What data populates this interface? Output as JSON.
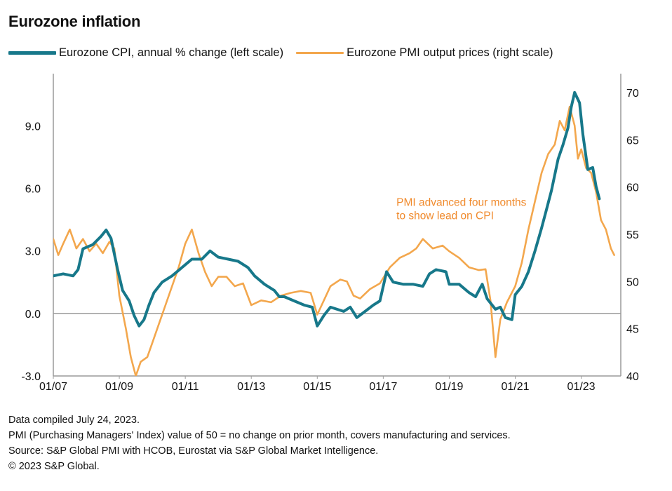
{
  "title": "Eurozone inflation",
  "legend": {
    "cpi": "Eurozone CPI, annual % change (left scale)",
    "pmi": "Eurozone PMI output prices (right scale)"
  },
  "colors": {
    "cpi": "#17788a",
    "pmi": "#f3a74d",
    "axis": "#9a9a9a",
    "annotation": "#f08a2c"
  },
  "footer": {
    "line1": "Data compiled July 24, 2023.",
    "line2": "PMI (Purchasing Managers' Index) value of 50 = no change on prior month, covers manufacturing and services.",
    "line3": "Source: S&P Global PMI with HCOB, Eurostat via S&P Global Market Intelligence.",
    "line4": "© 2023 S&P Global."
  },
  "chart_data": {
    "type": "line",
    "title": "Eurozone inflation",
    "x_labels": [
      "01/07",
      "01/09",
      "01/11",
      "01/13",
      "01/15",
      "01/17",
      "01/19",
      "01/21",
      "01/23"
    ],
    "x_label_years": [
      2007,
      2009,
      2011,
      2013,
      2015,
      2017,
      2019,
      2021,
      2023
    ],
    "x_range": [
      2007.0,
      2024.2
    ],
    "left_axis": {
      "ylim": [
        -3.0,
        11.5
      ],
      "ticks": [
        -3.0,
        0.0,
        3.0,
        6.0,
        9.0
      ],
      "tick_labels": [
        "-3.0",
        "0.0",
        "3.0",
        "6.0",
        "9.0"
      ]
    },
    "right_axis": {
      "ylim": [
        40,
        72
      ],
      "ticks": [
        40,
        45,
        50,
        55,
        60,
        65,
        70
      ],
      "tick_labels": [
        "40",
        "45",
        "50",
        "55",
        "60",
        "65",
        "70"
      ]
    },
    "annotation": {
      "lines": [
        "PMI advanced four months",
        "to show lead on CPI"
      ],
      "at": [
        2017.4,
        58.0
      ]
    },
    "series": [
      {
        "name": "Eurozone CPI, annual % change (left scale)",
        "axis": "left",
        "points": [
          [
            2007.0,
            1.8
          ],
          [
            2007.3,
            1.9
          ],
          [
            2007.6,
            1.8
          ],
          [
            2007.75,
            2.1
          ],
          [
            2007.9,
            3.1
          ],
          [
            2008.2,
            3.3
          ],
          [
            2008.45,
            3.7
          ],
          [
            2008.6,
            4.0
          ],
          [
            2008.75,
            3.6
          ],
          [
            2008.95,
            2.1
          ],
          [
            2009.1,
            1.1
          ],
          [
            2009.3,
            0.6
          ],
          [
            2009.45,
            -0.1
          ],
          [
            2009.6,
            -0.6
          ],
          [
            2009.75,
            -0.3
          ],
          [
            2009.9,
            0.4
          ],
          [
            2010.05,
            1.0
          ],
          [
            2010.3,
            1.5
          ],
          [
            2010.6,
            1.8
          ],
          [
            2010.9,
            2.2
          ],
          [
            2011.2,
            2.6
          ],
          [
            2011.5,
            2.6
          ],
          [
            2011.75,
            3.0
          ],
          [
            2012.0,
            2.7
          ],
          [
            2012.3,
            2.6
          ],
          [
            2012.6,
            2.5
          ],
          [
            2012.9,
            2.2
          ],
          [
            2013.1,
            1.8
          ],
          [
            2013.4,
            1.4
          ],
          [
            2013.7,
            1.1
          ],
          [
            2013.85,
            0.8
          ],
          [
            2014.0,
            0.8
          ],
          [
            2014.3,
            0.6
          ],
          [
            2014.6,
            0.4
          ],
          [
            2014.85,
            0.3
          ],
          [
            2015.0,
            -0.6
          ],
          [
            2015.2,
            -0.1
          ],
          [
            2015.4,
            0.3
          ],
          [
            2015.6,
            0.2
          ],
          [
            2015.8,
            0.1
          ],
          [
            2016.0,
            0.3
          ],
          [
            2016.2,
            -0.2
          ],
          [
            2016.45,
            0.1
          ],
          [
            2016.7,
            0.4
          ],
          [
            2016.9,
            0.6
          ],
          [
            2017.1,
            2.0
          ],
          [
            2017.3,
            1.5
          ],
          [
            2017.6,
            1.4
          ],
          [
            2017.9,
            1.4
          ],
          [
            2018.2,
            1.3
          ],
          [
            2018.4,
            1.9
          ],
          [
            2018.6,
            2.1
          ],
          [
            2018.9,
            2.0
          ],
          [
            2019.0,
            1.4
          ],
          [
            2019.3,
            1.4
          ],
          [
            2019.6,
            1.0
          ],
          [
            2019.8,
            0.8
          ],
          [
            2020.0,
            1.4
          ],
          [
            2020.15,
            0.7
          ],
          [
            2020.4,
            0.2
          ],
          [
            2020.55,
            0.3
          ],
          [
            2020.7,
            -0.2
          ],
          [
            2020.9,
            -0.3
          ],
          [
            2021.0,
            0.9
          ],
          [
            2021.2,
            1.3
          ],
          [
            2021.4,
            2.0
          ],
          [
            2021.6,
            3.0
          ],
          [
            2021.8,
            4.1
          ],
          [
            2021.95,
            5.0
          ],
          [
            2022.1,
            5.9
          ],
          [
            2022.3,
            7.4
          ],
          [
            2022.45,
            8.1
          ],
          [
            2022.6,
            8.9
          ],
          [
            2022.7,
            9.9
          ],
          [
            2022.8,
            10.6
          ],
          [
            2022.95,
            10.1
          ],
          [
            2023.05,
            8.6
          ],
          [
            2023.2,
            6.9
          ],
          [
            2023.35,
            7.0
          ],
          [
            2023.45,
            6.1
          ],
          [
            2023.55,
            5.5
          ]
        ]
      },
      {
        "name": "Eurozone PMI output prices (right scale)",
        "axis": "right",
        "points": [
          [
            2007.0,
            54.5
          ],
          [
            2007.15,
            52.8
          ],
          [
            2007.3,
            54.0
          ],
          [
            2007.5,
            55.5
          ],
          [
            2007.7,
            53.5
          ],
          [
            2007.9,
            54.5
          ],
          [
            2008.1,
            53.2
          ],
          [
            2008.3,
            54.0
          ],
          [
            2008.5,
            53.0
          ],
          [
            2008.7,
            54.2
          ],
          [
            2008.85,
            53.5
          ],
          [
            2009.0,
            48.5
          ],
          [
            2009.2,
            45.0
          ],
          [
            2009.35,
            42.0
          ],
          [
            2009.5,
            40.0
          ],
          [
            2009.65,
            41.5
          ],
          [
            2009.85,
            42.0
          ],
          [
            2010.0,
            43.5
          ],
          [
            2010.2,
            45.5
          ],
          [
            2010.4,
            47.5
          ],
          [
            2010.6,
            49.5
          ],
          [
            2010.8,
            51.5
          ],
          [
            2011.0,
            54.0
          ],
          [
            2011.2,
            55.5
          ],
          [
            2011.4,
            53.0
          ],
          [
            2011.6,
            51.0
          ],
          [
            2011.8,
            49.5
          ],
          [
            2012.0,
            50.5
          ],
          [
            2012.25,
            50.5
          ],
          [
            2012.5,
            49.5
          ],
          [
            2012.75,
            49.8
          ],
          [
            2013.0,
            47.5
          ],
          [
            2013.3,
            48.0
          ],
          [
            2013.6,
            47.8
          ],
          [
            2013.9,
            48.5
          ],
          [
            2014.2,
            48.8
          ],
          [
            2014.5,
            49.0
          ],
          [
            2014.8,
            48.8
          ],
          [
            2015.0,
            46.5
          ],
          [
            2015.2,
            48.0
          ],
          [
            2015.4,
            49.5
          ],
          [
            2015.7,
            50.2
          ],
          [
            2015.9,
            50.0
          ],
          [
            2016.1,
            48.5
          ],
          [
            2016.3,
            48.2
          ],
          [
            2016.6,
            49.2
          ],
          [
            2016.9,
            49.8
          ],
          [
            2017.2,
            51.5
          ],
          [
            2017.5,
            52.5
          ],
          [
            2017.8,
            53.0
          ],
          [
            2018.0,
            53.5
          ],
          [
            2018.2,
            54.5
          ],
          [
            2018.5,
            53.5
          ],
          [
            2018.8,
            53.8
          ],
          [
            2019.0,
            53.2
          ],
          [
            2019.3,
            52.5
          ],
          [
            2019.6,
            51.5
          ],
          [
            2019.9,
            51.2
          ],
          [
            2020.1,
            51.3
          ],
          [
            2020.25,
            48.0
          ],
          [
            2020.4,
            42.0
          ],
          [
            2020.55,
            46.0
          ],
          [
            2020.75,
            47.8
          ],
          [
            2021.0,
            49.5
          ],
          [
            2021.2,
            52.0
          ],
          [
            2021.4,
            55.5
          ],
          [
            2021.6,
            58.5
          ],
          [
            2021.8,
            61.5
          ],
          [
            2022.0,
            63.5
          ],
          [
            2022.2,
            64.5
          ],
          [
            2022.35,
            67.0
          ],
          [
            2022.5,
            66.0
          ],
          [
            2022.65,
            68.5
          ],
          [
            2022.8,
            66.5
          ],
          [
            2022.9,
            63.0
          ],
          [
            2023.0,
            64.0
          ],
          [
            2023.15,
            62.0
          ],
          [
            2023.3,
            61.5
          ],
          [
            2023.45,
            59.5
          ],
          [
            2023.6,
            56.5
          ],
          [
            2023.75,
            55.5
          ],
          [
            2023.9,
            53.5
          ],
          [
            2024.0,
            52.8
          ]
        ]
      }
    ]
  }
}
